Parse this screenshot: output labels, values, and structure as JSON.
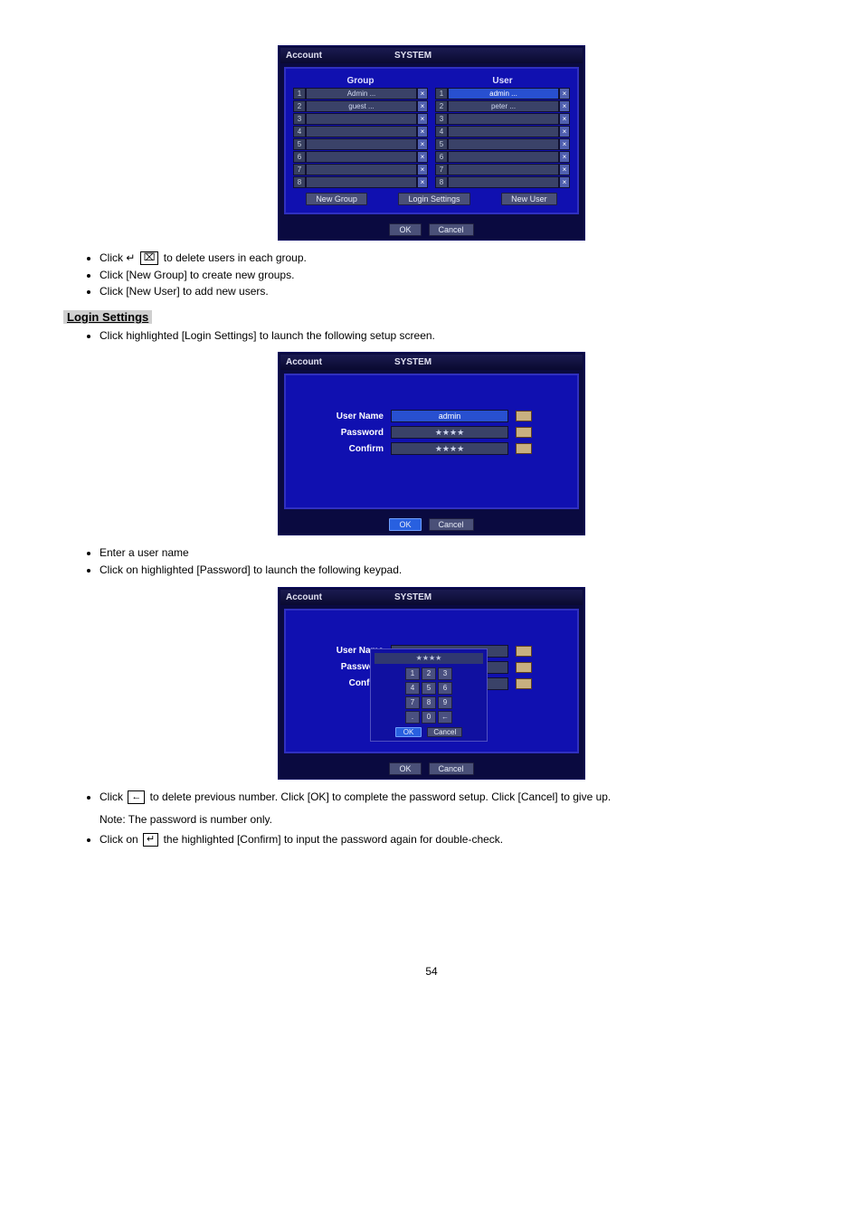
{
  "page_number": "54",
  "screenshot1": {
    "title_left": "Account",
    "title_right": "SYSTEM",
    "col1_header": "Group",
    "col2_header": "User",
    "groups": [
      {
        "n": "1",
        "name": "Admin ..."
      },
      {
        "n": "2",
        "name": "guest ..."
      },
      {
        "n": "3",
        "name": ""
      },
      {
        "n": "4",
        "name": ""
      },
      {
        "n": "5",
        "name": ""
      },
      {
        "n": "6",
        "name": ""
      },
      {
        "n": "7",
        "name": ""
      },
      {
        "n": "8",
        "name": ""
      }
    ],
    "users": [
      {
        "n": "1",
        "name": "admin ...",
        "sel": true
      },
      {
        "n": "2",
        "name": "peter ..."
      },
      {
        "n": "3",
        "name": ""
      },
      {
        "n": "4",
        "name": ""
      },
      {
        "n": "5",
        "name": ""
      },
      {
        "n": "6",
        "name": ""
      },
      {
        "n": "7",
        "name": ""
      },
      {
        "n": "8",
        "name": ""
      }
    ],
    "btn_new_group": "New Group",
    "btn_login_settings": "Login Settings",
    "btn_new_user": "New User",
    "btn_ok": "OK",
    "btn_cancel": "Cancel"
  },
  "bullets_a": [
    {
      "pre": "Click ↵ ",
      "icon": "⌧",
      "post": " to delete users in each group."
    },
    {
      "pre": "Click [New Group] to create new groups.",
      "icon": "",
      "post": ""
    },
    {
      "pre": "Click [New User] to add new users.",
      "icon": "",
      "post": ""
    }
  ],
  "section_login": "Login Settings",
  "bullets_b": [
    "Click highlighted [Login Settings] to launch the following setup screen."
  ],
  "screenshot2": {
    "title_left": "Account",
    "title_right": "SYSTEM",
    "rows": [
      {
        "label": "User Name",
        "value": "admin",
        "sel": true
      },
      {
        "label": "Password",
        "value": "★★★★"
      },
      {
        "label": "Confirm",
        "value": "★★★★"
      }
    ],
    "btn_ok": "OK",
    "btn_cancel": "Cancel"
  },
  "bullets_c": [
    "Enter a user name",
    "Click on highlighted [Password] to launch the following keypad."
  ],
  "screenshot3": {
    "title_left": "Account",
    "title_right": "SYSTEM",
    "rows": [
      {
        "label": "User Name",
        "value": ""
      },
      {
        "label": "Password",
        "value": ""
      },
      {
        "label": "Confirm",
        "value": ""
      }
    ],
    "keypad_input": "★★★★",
    "keys": [
      "1",
      "2",
      "3",
      "4",
      "5",
      "6",
      "7",
      "8",
      "9",
      ".",
      "0",
      "←"
    ],
    "kp_ok": "OK",
    "kp_cancel": "Cancel",
    "btn_ok": "OK",
    "btn_cancel": "Cancel"
  },
  "bullets_d": [
    {
      "pre": "Click ",
      "icon": "←",
      "post": " to delete previous number. Click [OK] to complete the password setup. Click [Cancel] to give up."
    }
  ],
  "note_text": "Note: The password is number only.",
  "bullets_e": [
    {
      "pre": "Click on ",
      "icon": "↵",
      "post": " the highlighted [Confirm] to input the password again for double-check."
    }
  ]
}
